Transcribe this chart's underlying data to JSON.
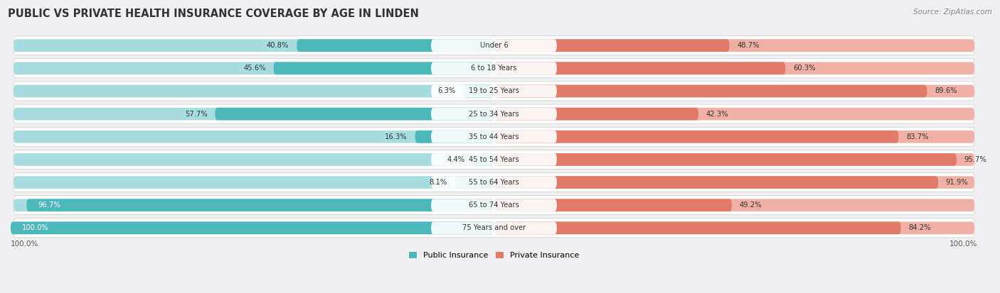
{
  "title": "PUBLIC VS PRIVATE HEALTH INSURANCE COVERAGE BY AGE IN LINDEN",
  "source": "Source: ZipAtlas.com",
  "categories": [
    "Under 6",
    "6 to 18 Years",
    "19 to 25 Years",
    "25 to 34 Years",
    "35 to 44 Years",
    "45 to 54 Years",
    "55 to 64 Years",
    "65 to 74 Years",
    "75 Years and over"
  ],
  "public_values": [
    40.8,
    45.6,
    6.3,
    57.7,
    16.3,
    4.4,
    8.1,
    96.7,
    100.0
  ],
  "private_values": [
    48.7,
    60.3,
    89.6,
    42.3,
    83.7,
    95.7,
    91.9,
    49.2,
    84.2
  ],
  "public_color": "#4db8bc",
  "private_color": "#e07b6a",
  "public_color_light": "#a8dde0",
  "private_color_light": "#f0b0a5",
  "row_bg": "#e8e8eb",
  "fig_bg": "#f0f0f2",
  "title_color": "#333333",
  "source_color": "#888888",
  "text_dark": "#333333",
  "text_white": "#ffffff",
  "max_value": 100.0
}
